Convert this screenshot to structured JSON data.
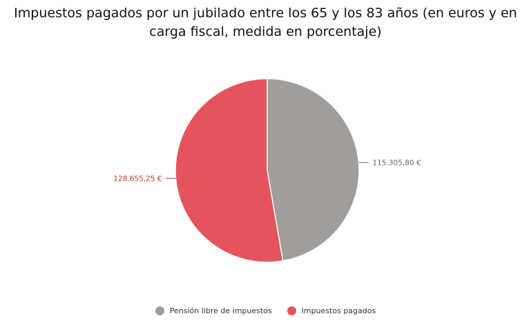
{
  "chart_data": {
    "type": "pie",
    "title": "Impuestos pagados por un jubilado entre los 65 y los 83 años (en euros y en carga fiscal, medida en porcentaje)",
    "legend_position": "bottom",
    "slices": [
      {
        "label": "Pensión libre de impuestos",
        "value": 115305.8,
        "display": "115.305,80 €",
        "color": "#a09d9b",
        "label_color": "#666666"
      },
      {
        "label": "Impuestos pagados",
        "value": 128655.25,
        "display": "128.655,25 €",
        "color": "#e5545c",
        "label_color": "#c0392b"
      }
    ]
  }
}
